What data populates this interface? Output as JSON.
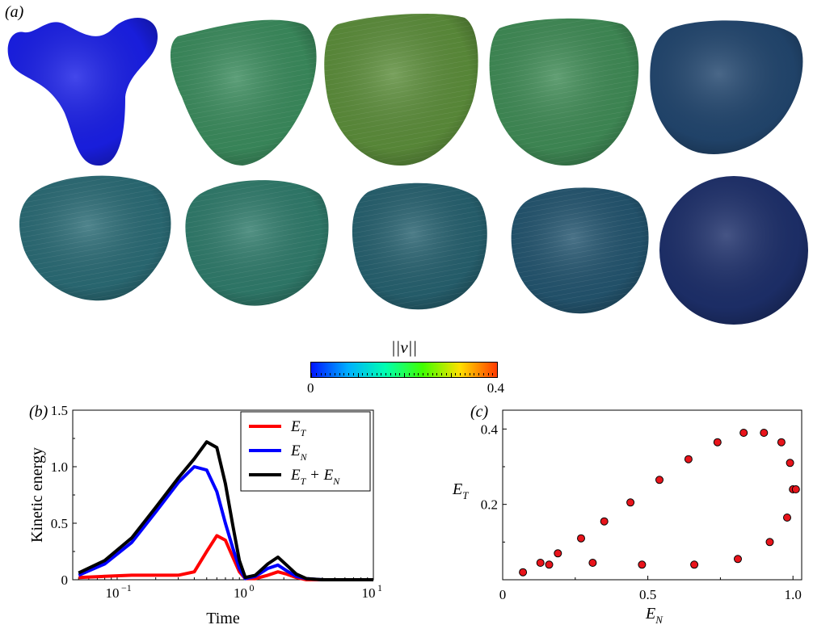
{
  "panels": {
    "a": "(a)",
    "b": "(b)",
    "c": "(c)"
  },
  "colorbar": {
    "symbol": "||v||",
    "min_label": "0",
    "max_label": "0.4",
    "colors": [
      "#0015ff",
      "#00b0ff",
      "#00ffb0",
      "#40ff00",
      "#ffe000",
      "#ff3a00"
    ]
  },
  "shape_colors": {
    "row1": [
      "#1a1fe6",
      "#3a8a5c",
      "#5b8c3a",
      "#3f8a55",
      "#22466e"
    ],
    "row2": [
      "#2a6a74",
      "#2f7a6a",
      "#26606e",
      "#23546e",
      "#1d2f6a"
    ]
  },
  "chart_data": [
    {
      "type": "line",
      "xlabel": "Time",
      "ylabel": "Kinetic energy",
      "xscale": "log",
      "xlim": [
        0.045,
        10
      ],
      "ylim": [
        0,
        1.5
      ],
      "xticks": [
        "10",
        "10",
        "10"
      ],
      "xtick_exponents": [
        "−1",
        "0",
        "1"
      ],
      "xtick_values": [
        0.1,
        1,
        10
      ],
      "yticks": [
        "0",
        "0.5",
        "1.0",
        "1.5"
      ],
      "ytick_values": [
        0,
        0.5,
        1.0,
        1.5
      ],
      "legend_position": "top-right",
      "series": [
        {
          "name": "E_T",
          "label_main": "E",
          "label_sub": "T",
          "label_extra": "",
          "label_extra_sub": "",
          "color": "#ff0000",
          "x": [
            0.05,
            0.08,
            0.13,
            0.2,
            0.3,
            0.4,
            0.5,
            0.6,
            0.7,
            0.8,
            0.9,
            1.0,
            1.2,
            1.5,
            1.8,
            2.1,
            2.5,
            3.0,
            4.0,
            6.0,
            10.0
          ],
          "y": [
            0.02,
            0.03,
            0.04,
            0.04,
            0.04,
            0.07,
            0.25,
            0.39,
            0.35,
            0.2,
            0.07,
            0.01,
            0.01,
            0.04,
            0.07,
            0.05,
            0.02,
            0.0,
            0.0,
            0.0,
            0.0
          ]
        },
        {
          "name": "E_N",
          "label_main": "E",
          "label_sub": "N",
          "label_extra": "",
          "label_extra_sub": "",
          "color": "#0000ff",
          "x": [
            0.05,
            0.08,
            0.13,
            0.2,
            0.3,
            0.4,
            0.5,
            0.6,
            0.7,
            0.8,
            0.9,
            1.0,
            1.2,
            1.5,
            1.8,
            2.1,
            2.5,
            3.0,
            4.0,
            6.0,
            10.0
          ],
          "y": [
            0.04,
            0.14,
            0.33,
            0.6,
            0.86,
            1.0,
            0.97,
            0.78,
            0.5,
            0.28,
            0.1,
            0.01,
            0.03,
            0.1,
            0.13,
            0.08,
            0.03,
            0.01,
            0.0,
            0.0,
            0.0
          ]
        },
        {
          "name": "E_T + E_N",
          "label_main": "E",
          "label_sub": "T",
          "label_extra": "+ E",
          "label_extra_sub": "N",
          "color": "#000000",
          "x": [
            0.05,
            0.08,
            0.13,
            0.2,
            0.3,
            0.4,
            0.5,
            0.6,
            0.7,
            0.8,
            0.9,
            1.0,
            1.2,
            1.5,
            1.8,
            2.1,
            2.5,
            3.0,
            4.0,
            6.0,
            10.0
          ],
          "y": [
            0.06,
            0.17,
            0.37,
            0.64,
            0.9,
            1.07,
            1.22,
            1.17,
            0.85,
            0.48,
            0.17,
            0.02,
            0.04,
            0.14,
            0.2,
            0.13,
            0.05,
            0.01,
            0.0,
            0.0,
            0.0
          ]
        }
      ]
    },
    {
      "type": "scatter",
      "xlabel_main": "E",
      "xlabel_sub": "N",
      "ylabel_main": "E",
      "ylabel_sub": "T",
      "xlim": [
        0.0,
        1.03
      ],
      "ylim": [
        0.0,
        0.45
      ],
      "xticks": [
        "0",
        "0.5",
        "1.0"
      ],
      "xtick_values": [
        0.0,
        0.5,
        1.0
      ],
      "yticks": [
        "0.2",
        "0.4"
      ],
      "ytick_values": [
        0.2,
        0.4
      ],
      "marker_color": "#e8141b",
      "x": [
        0.07,
        0.13,
        0.16,
        0.19,
        0.27,
        0.31,
        0.35,
        0.44,
        0.48,
        0.54,
        0.64,
        0.66,
        0.74,
        0.81,
        0.83,
        0.9,
        0.92,
        0.96,
        0.98,
        0.99,
        1.0,
        1.01
      ],
      "y": [
        0.02,
        0.045,
        0.04,
        0.07,
        0.11,
        0.045,
        0.155,
        0.205,
        0.04,
        0.265,
        0.32,
        0.04,
        0.365,
        0.055,
        0.39,
        0.39,
        0.1,
        0.365,
        0.165,
        0.31,
        0.24,
        0.24
      ]
    }
  ]
}
